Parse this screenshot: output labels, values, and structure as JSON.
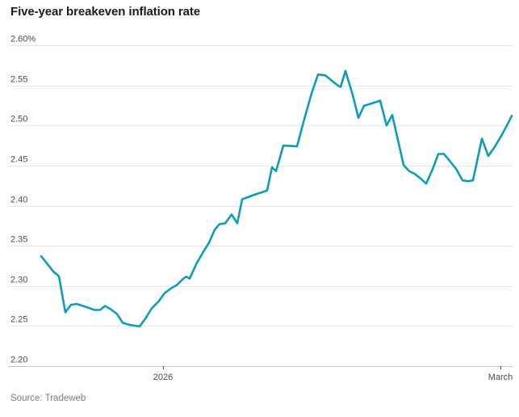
{
  "title": "Five-year breakeven inflation rate",
  "source": "Source: Tradeweb",
  "chart_data": {
    "type": "line",
    "title": "Five-year breakeven inflation rate",
    "unit": "%",
    "line_color": "#0c9eb9",
    "grid": true,
    "legend": "none",
    "ylim": [
      2.2,
      2.6
    ],
    "y_ticks": [
      {
        "label": "2.60%",
        "value": 2.6
      },
      {
        "label": "2.55",
        "value": 2.55
      },
      {
        "label": "2.50",
        "value": 2.5
      },
      {
        "label": "2.45",
        "value": 2.45
      },
      {
        "label": "2.40",
        "value": 2.4
      },
      {
        "label": "2.35",
        "value": 2.35
      },
      {
        "label": "2.30",
        "value": 2.3
      },
      {
        "label": "2.25",
        "value": 2.25
      },
      {
        "label": "2.20",
        "value": 2.2
      }
    ],
    "x_ticks": [
      {
        "label": "2026",
        "x": 202
      },
      {
        "label": "March",
        "x": 620
      }
    ],
    "layout": {
      "x_left": 10,
      "x_right": 635,
      "y_top": 56,
      "y_bottom": 453,
      "label_x": 13
    },
    "series": [
      {
        "name": "Five-year breakeven inflation rate",
        "points": [
          [
            51,
            2.337
          ],
          [
            59,
            2.327
          ],
          [
            66,
            2.318
          ],
          [
            73,
            2.312
          ],
          [
            81,
            2.267
          ],
          [
            88,
            2.2765
          ],
          [
            95,
            2.2775
          ],
          [
            103,
            2.275
          ],
          [
            110,
            2.2725
          ],
          [
            117,
            2.27
          ],
          [
            124,
            2.27
          ],
          [
            130,
            2.275
          ],
          [
            137,
            2.271
          ],
          [
            145,
            2.265
          ],
          [
            152,
            2.254
          ],
          [
            160,
            2.2515
          ],
          [
            166,
            2.2505
          ],
          [
            173,
            2.2495
          ],
          [
            180,
            2.259
          ],
          [
            188,
            2.272
          ],
          [
            196,
            2.28
          ],
          [
            204,
            2.291
          ],
          [
            212,
            2.297
          ],
          [
            219,
            2.301
          ],
          [
            227,
            2.309
          ],
          [
            231,
            2.3115
          ],
          [
            235,
            2.309
          ],
          [
            243,
            2.327
          ],
          [
            251,
            2.341
          ],
          [
            259,
            2.354
          ],
          [
            266,
            2.37
          ],
          [
            272,
            2.377
          ],
          [
            279,
            2.378
          ],
          [
            287,
            2.389
          ],
          [
            294,
            2.378
          ],
          [
            300,
            2.408
          ],
          [
            308,
            2.411
          ],
          [
            316,
            2.414
          ],
          [
            324,
            2.4165
          ],
          [
            331,
            2.419
          ],
          [
            337,
            2.448
          ],
          [
            342,
            2.443
          ],
          [
            351,
            2.475
          ],
          [
            360,
            2.4745
          ],
          [
            368,
            2.474
          ],
          [
            377,
            2.508
          ],
          [
            386,
            2.54
          ],
          [
            394,
            2.5635
          ],
          [
            403,
            2.5625
          ],
          [
            411,
            2.556
          ],
          [
            419,
            2.5495
          ],
          [
            422,
            2.548
          ],
          [
            428,
            2.568
          ],
          [
            437,
            2.538
          ],
          [
            444,
            2.5095
          ],
          [
            451,
            2.5245
          ],
          [
            459,
            2.527
          ],
          [
            465,
            2.529
          ],
          [
            471,
            2.531
          ],
          [
            479,
            2.5
          ],
          [
            486,
            2.513
          ],
          [
            500,
            2.4506
          ],
          [
            507,
            2.443
          ],
          [
            514,
            2.4395
          ],
          [
            521,
            2.434
          ],
          [
            528,
            2.4275
          ],
          [
            536,
            2.4455
          ],
          [
            543,
            2.4645
          ],
          [
            550,
            2.4645
          ],
          [
            557,
            2.456
          ],
          [
            565,
            2.446
          ],
          [
            573,
            2.4315
          ],
          [
            580,
            2.4305
          ],
          [
            586,
            2.4315
          ],
          [
            597,
            2.4835
          ],
          [
            605,
            2.462
          ],
          [
            613,
            2.4735
          ],
          [
            621,
            2.487
          ],
          [
            628,
            2.5
          ],
          [
            634,
            2.512
          ]
        ]
      }
    ]
  }
}
